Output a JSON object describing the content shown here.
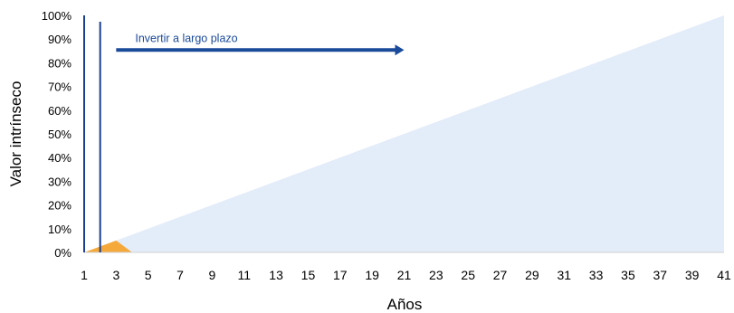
{
  "chart_data": {
    "type": "area",
    "xlabel": "Años",
    "ylabel": "Valor intrínseco",
    "xlim": [
      1,
      41
    ],
    "ylim": [
      0,
      1.0
    ],
    "x_ticks": [
      "1",
      "3",
      "5",
      "7",
      "9",
      "11",
      "13",
      "15",
      "17",
      "19",
      "21",
      "23",
      "25",
      "27",
      "29",
      "31",
      "33",
      "35",
      "37",
      "39",
      "41"
    ],
    "y_ticks": [
      "0%",
      "10%",
      "20%",
      "30%",
      "40%",
      "50%",
      "60%",
      "70%",
      "80%",
      "90%",
      "100%"
    ],
    "grid": false,
    "legend": "none",
    "series": [
      {
        "type": "area",
        "x": [
          1,
          41
        ],
        "y": [
          0,
          1.0
        ],
        "color": "#e3ecf9"
      },
      {
        "type": "area",
        "x": [
          1,
          3,
          4
        ],
        "y": [
          0,
          0.05,
          0
        ],
        "color": "#f5a93b"
      }
    ],
    "vertical_lines": [
      {
        "x": 1,
        "color": "#1a3f8f"
      },
      {
        "x": 2,
        "color": "#1a3f8f"
      }
    ],
    "annotations": [
      {
        "text": "Invertir a largo plazo",
        "x_start": 3,
        "x_end": 21,
        "y": 0.85,
        "type": "arrow",
        "color": "#1a4a9a"
      }
    ]
  }
}
